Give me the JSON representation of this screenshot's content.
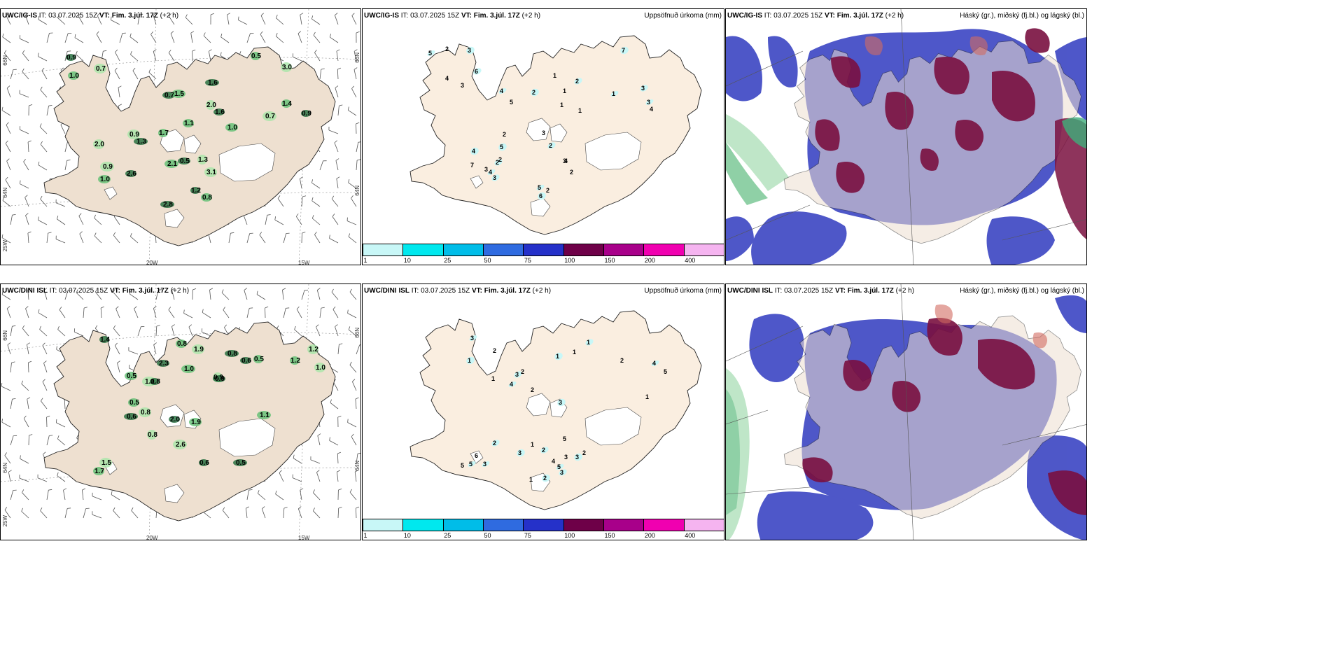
{
  "rows": [
    {
      "panels": [
        {
          "label": "UWC/IG-IS",
          "it": "IT: 03.07.2025 15Z",
          "vt": "VT: Fim. 3.júl. 17Z",
          "lead": "(+2 h)"
        },
        {
          "label": "UWC/IG-IS",
          "it": "IT: 03.07.2025 15Z",
          "vt": "VT: Fim. 3.júl. 17Z",
          "lead": "(+2 h)",
          "title": "Uppsöfnuð úrkoma (mm)"
        },
        {
          "label": "UWC/IG-IS",
          "it": "IT: 03.07.2025 15Z",
          "vt": "VT: Fim. 3.júl. 17Z",
          "lead": "(+2 h)",
          "title": "Háský (gr.), miðský (fj.bl.) og lágský (bl.)"
        }
      ]
    },
    {
      "panels": [
        {
          "label": "UWC/DINI ISL",
          "it": "IT: 03.07.2025 15Z",
          "vt": "VT: Fim. 3.júl. 17Z",
          "lead": "(+2 h)"
        },
        {
          "label": "UWC/DINI ISL",
          "it": "IT: 03.07.2025 15Z",
          "vt": "VT: Fim. 3.júl. 17Z",
          "lead": "(+2 h)",
          "title": "Uppsöfnuð úrkoma (mm)"
        },
        {
          "label": "UWC/DINI ISL",
          "it": "IT: 03.07.2025 15Z",
          "vt": "VT: Fim. 3.júl. 17Z",
          "lead": "(+2 h)",
          "title": "Háský (gr.), miðský (fj.bl.) og lágský (bl.)"
        }
      ]
    }
  ],
  "axes": {
    "lat1": "66N",
    "lat2": "64N",
    "lon_left": "25W",
    "lon1": "20W",
    "lon2": "15W"
  },
  "legend": {
    "colors": [
      "#c8f7f7",
      "#00e8ee",
      "#00bde8",
      "#2f6be0",
      "#2531c9",
      "#6e0048",
      "#a8008a",
      "#f000b0",
      "#f5b4f0"
    ],
    "ticks": [
      "1",
      "10",
      "25",
      "50",
      "75",
      "100",
      "150",
      "200",
      "400"
    ]
  },
  "colors": {
    "land": "#eee0d0",
    "precip_land": "#faeee0",
    "cloud_low": "#3f49c4",
    "cloud_mid": "#8a1045",
    "cloud_high": "#7ad0a0"
  },
  "wind_values_top": [
    "0.9",
    "1.0",
    "0.7",
    "1.6",
    "0.5",
    "3.0",
    "0.7",
    "1.5",
    "2.0",
    "1.6",
    "1.0",
    "0.7",
    "0.9",
    "1.1",
    "0.9",
    "1.3",
    "1.7",
    "2.0",
    "0.5",
    "2.1",
    "1.3",
    "2.6",
    "1.0",
    "0.9",
    "1.2",
    "0.8",
    "3.1",
    "2.8",
    "1.4"
  ],
  "wind_values_bottom": [
    "1.4",
    "0.8",
    "1.9",
    "0.8",
    "0.5",
    "1.2",
    "2.3",
    "1.0",
    "0.9",
    "0.6",
    "0.5",
    "1.1",
    "0.8",
    "0.5",
    "0.8",
    "0.6",
    "1.2",
    "1.0",
    "0.9",
    "1.1",
    "0.8",
    "2.0",
    "1.9",
    "2.6",
    "0.6",
    "1.7",
    "1.5",
    "0.5"
  ],
  "precip_values_top": [
    "5",
    "2",
    "3",
    "4",
    "6",
    "3",
    "4",
    "5",
    "2",
    "1",
    "2",
    "1",
    "1",
    "1",
    "7",
    "1",
    "3",
    "4",
    "3",
    "2",
    "4",
    "3",
    "2",
    "7",
    "4",
    "2",
    "5",
    "3",
    "2",
    "3",
    "5",
    "2",
    "6",
    "4",
    "3",
    "2"
  ],
  "precip_values_bottom": [
    "3",
    "2",
    "1",
    "1",
    "3",
    "2",
    "4",
    "2",
    "1",
    "1",
    "1",
    "2",
    "4",
    "5",
    "3",
    "1",
    "2",
    "6",
    "3",
    "5",
    "3",
    "1",
    "2",
    "4",
    "5",
    "3",
    "3",
    "2",
    "3",
    "5",
    "5",
    "1",
    "2"
  ]
}
